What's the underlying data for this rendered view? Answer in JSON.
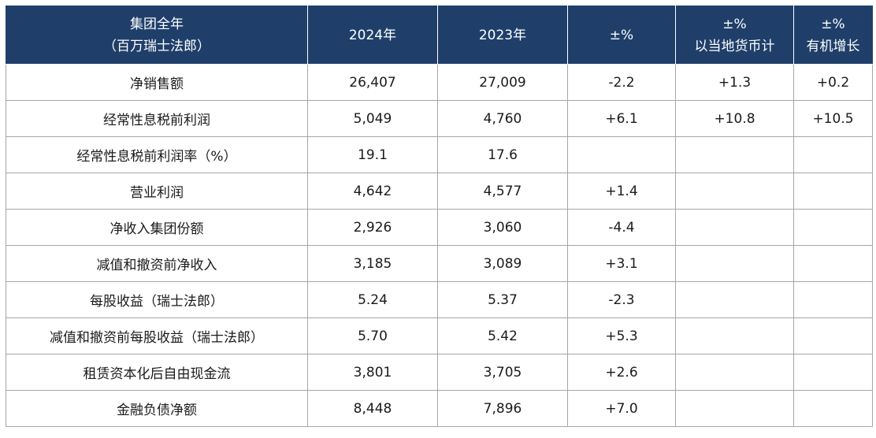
{
  "header": {
    "metric_line1": "集团全年",
    "metric_line2": "（百万瑞士法郎）",
    "year1": "2024年",
    "year2": "2023年",
    "change": "±%",
    "local_line1": "±%",
    "local_line2": "以当地货币计",
    "organic_line1": "±%",
    "organic_line2": "有机增长"
  },
  "rows": [
    {
      "label": "净销售额",
      "y2024": "26,407",
      "y2023": "27,009",
      "change": "-2.2",
      "local": "+1.3",
      "organic": "+0.2"
    },
    {
      "label": "经常性息税前利润",
      "y2024": "5,049",
      "y2023": "4,760",
      "change": "+6.1",
      "local": "+10.8",
      "organic": "+10.5"
    },
    {
      "label": "经常性息税前利润率（%）",
      "y2024": "19.1",
      "y2023": "17.6",
      "change": "",
      "local": "",
      "organic": ""
    },
    {
      "label": "营业利润",
      "y2024": "4,642",
      "y2023": "4,577",
      "change": "+1.4",
      "local": "",
      "organic": ""
    },
    {
      "label": "净收入集团份额",
      "y2024": "2,926",
      "y2023": "3,060",
      "change": "-4.4",
      "local": "",
      "organic": ""
    },
    {
      "label": "减值和撤资前净收入",
      "y2024": "3,185",
      "y2023": "3,089",
      "change": "+3.1",
      "local": "",
      "organic": ""
    },
    {
      "label": "每股收益（瑞士法郎）",
      "y2024": "5.24",
      "y2023": "5.37",
      "change": "-2.3",
      "local": "",
      "organic": ""
    },
    {
      "label": "减值和撤资前每股收益（瑞士法郎）",
      "y2024": "5.70",
      "y2023": "5.42",
      "change": "+5.3",
      "local": "",
      "organic": ""
    },
    {
      "label": "租赁资本化后自由现金流",
      "y2024": "3,801",
      "y2023": "3,705",
      "change": "+2.6",
      "local": "",
      "organic": ""
    },
    {
      "label": "金融负债净额",
      "y2024": "8,448",
      "y2023": "7,896",
      "change": "+7.0",
      "local": "",
      "organic": ""
    }
  ],
  "colors": {
    "header_bg": "#1f3f6a",
    "header_text": "#ffffff",
    "grid": "#a6a6a6"
  }
}
